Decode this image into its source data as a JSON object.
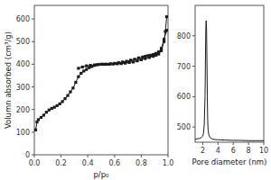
{
  "chart_data": [
    {
      "type": "line",
      "x_label": "p/p₀",
      "y_label": "Volumn absorbed (cm³/g)",
      "xlim": [
        0.0,
        1.0
      ],
      "ylim": [
        0,
        660
      ],
      "xticks": [
        {
          "value": 0.0,
          "label": "0.0"
        },
        0.2,
        0.4,
        0.6,
        0.8,
        {
          "value": 1.0,
          "label": "1.0"
        }
      ],
      "yticks": [
        0,
        100,
        200,
        300,
        400,
        500,
        600
      ],
      "marker": "square",
      "series": [
        {
          "color": "#1a1a1a",
          "x": [
            0.01,
            0.02,
            0.03,
            0.05,
            0.07,
            0.09,
            0.11,
            0.13,
            0.15,
            0.17,
            0.19,
            0.21,
            0.23,
            0.25,
            0.27,
            0.29,
            0.31,
            0.33,
            0.35,
            0.37,
            0.39,
            0.41,
            0.43,
            0.45,
            0.47,
            0.5,
            0.53,
            0.56,
            0.59,
            0.62,
            0.65,
            0.68,
            0.71,
            0.74,
            0.77,
            0.8,
            0.83,
            0.86,
            0.89,
            0.91,
            0.93,
            0.95,
            0.97,
            0.98,
            0.99
          ],
          "values": [
            110,
            145,
            155,
            165,
            175,
            188,
            198,
            205,
            210,
            217,
            225,
            235,
            248,
            262,
            278,
            295,
            320,
            345,
            360,
            370,
            377,
            385,
            390,
            395,
            398,
            400,
            400,
            400,
            401,
            402,
            403,
            405,
            408,
            410,
            415,
            420,
            425,
            430,
            435,
            440,
            445,
            460,
            500,
            545,
            610
          ]
        },
        {
          "color": "#1a1a1a",
          "x": [
            0.99,
            0.97,
            0.95,
            0.93,
            0.91,
            0.89,
            0.87,
            0.85,
            0.83,
            0.81,
            0.78,
            0.75,
            0.72,
            0.69,
            0.66,
            0.63,
            0.6,
            0.57,
            0.54,
            0.51,
            0.48,
            0.45,
            0.42,
            0.39,
            0.36,
            0.33
          ],
          "values": [
            550,
            510,
            470,
            455,
            448,
            443,
            440,
            438,
            435,
            432,
            428,
            422,
            418,
            413,
            410,
            407,
            404,
            402,
            400,
            400,
            399,
            397,
            395,
            393,
            388,
            382
          ]
        }
      ]
    },
    {
      "type": "line",
      "x_label": "Pore diameter (nm)",
      "xlim": [
        1,
        10
      ],
      "ylim": [
        450,
        900
      ],
      "xticks": [
        2,
        4,
        6,
        8,
        10
      ],
      "yticks": [
        500,
        600,
        700,
        800
      ],
      "series": [
        {
          "color": "#1a1a1a",
          "x": [
            1.0,
            1.5,
            1.8,
            2.0,
            2.1,
            2.2,
            2.3,
            2.4,
            2.45,
            2.5,
            2.55,
            2.6,
            2.65,
            2.7,
            2.8,
            2.9,
            3.0,
            3.2,
            3.5,
            4.0,
            5.0,
            6.0,
            7.0,
            8.0,
            9.0,
            10.0
          ],
          "values": [
            460,
            462,
            465,
            470,
            480,
            510,
            600,
            820,
            850,
            820,
            720,
            600,
            520,
            490,
            475,
            468,
            464,
            461,
            459,
            458,
            457,
            456,
            456,
            455,
            455,
            455
          ]
        }
      ]
    }
  ]
}
